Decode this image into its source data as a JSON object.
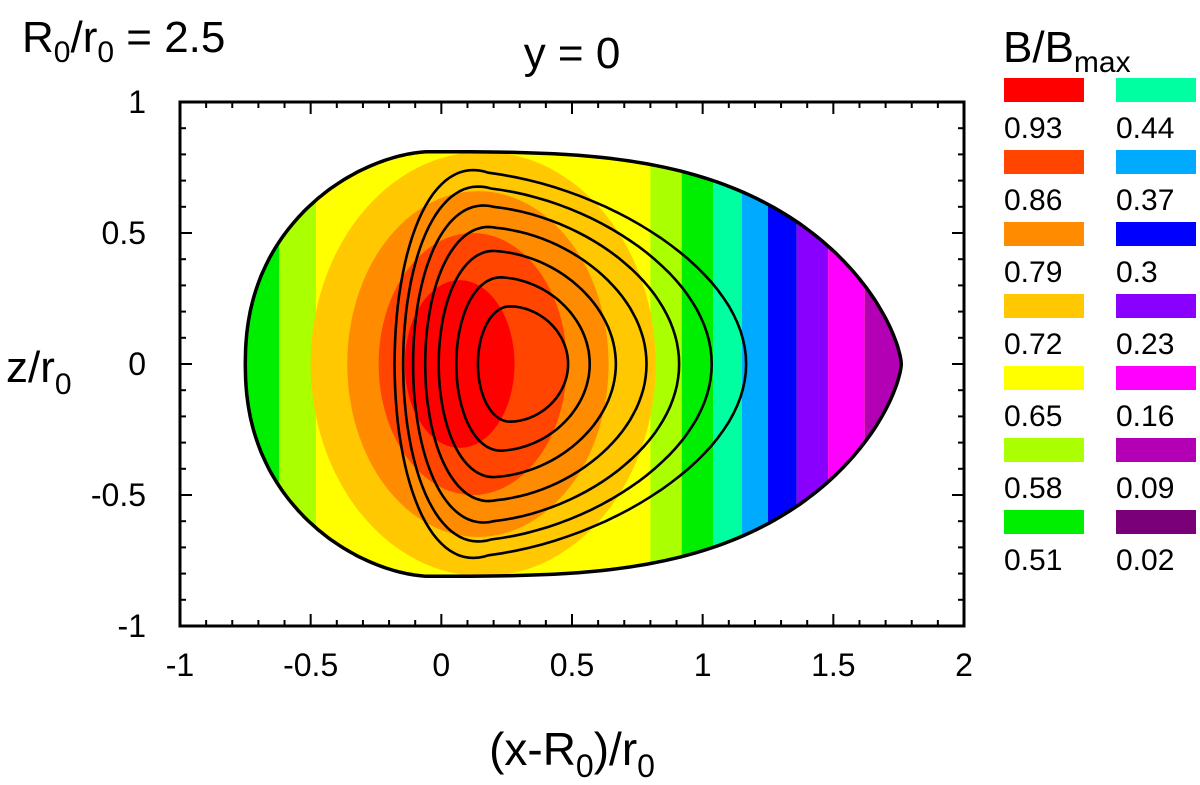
{
  "chart_data": {
    "type": "heatmap",
    "corner_label": {
      "main": "R",
      "sub": "0",
      "tail": "/r",
      "sub2": "0",
      "rest": " = 2.5"
    },
    "title": "y = 0",
    "xlabel": {
      "pre": "(x-R",
      "sub": "0",
      "mid": ")/r",
      "sub2": "0"
    },
    "ylabel": {
      "main": "z/r",
      "sub": "0"
    },
    "xlim": [
      -1,
      2
    ],
    "ylim": [
      -1,
      1
    ],
    "x_ticks": [
      {
        "value": -1,
        "label": "-1"
      },
      {
        "value": -0.5,
        "label": "-0.5"
      },
      {
        "value": 0,
        "label": "0"
      },
      {
        "value": 0.5,
        "label": "0.5"
      },
      {
        "value": 1,
        "label": "1"
      },
      {
        "value": 1.5,
        "label": "1.5"
      },
      {
        "value": 2,
        "label": "2"
      }
    ],
    "y_ticks": [
      {
        "value": -1,
        "label": "-1"
      },
      {
        "value": -0.5,
        "label": "-0.5"
      },
      {
        "value": 0,
        "label": "0"
      },
      {
        "value": 0.5,
        "label": "0.5"
      },
      {
        "value": 1,
        "label": "1"
      }
    ],
    "grid": false,
    "legend_position": "right",
    "colorbar_title": {
      "main": "B/B",
      "sub": "max"
    },
    "levels": [
      {
        "label": "0.93",
        "color": "#ff0000"
      },
      {
        "label": "0.86",
        "color": "#ff4500"
      },
      {
        "label": "0.79",
        "color": "#ff8c00"
      },
      {
        "label": "0.72",
        "color": "#ffc800"
      },
      {
        "label": "0.65",
        "color": "#ffff00"
      },
      {
        "label": "0.58",
        "color": "#aaff00"
      },
      {
        "label": "0.51",
        "color": "#00ee00"
      },
      {
        "label": "0.44",
        "color": "#00ffa0"
      },
      {
        "label": "0.37",
        "color": "#00aaff"
      },
      {
        "label": "0.3",
        "color": "#0000ff"
      },
      {
        "label": "0.23",
        "color": "#8a00ff"
      },
      {
        "label": "0.16",
        "color": "#ff00ff"
      },
      {
        "label": "0.09",
        "color": "#b400b4"
      },
      {
        "label": "0.02",
        "color": "#7a007a"
      }
    ],
    "boundary": {
      "x_min": -0.75,
      "x_max": 1.76,
      "z_max": 0.81,
      "z_max_at_x": -0.05
    },
    "color_bands_x": [
      {
        "x_from": -1.0,
        "x_to": -0.62,
        "color": "#00ee00"
      },
      {
        "x_from": -0.62,
        "x_to": -0.48,
        "color": "#aaff00"
      },
      {
        "x_from": 0.8,
        "x_to": 0.92,
        "color": "#aaff00"
      },
      {
        "x_from": 0.92,
        "x_to": 1.04,
        "color": "#00ee00"
      },
      {
        "x_from": 1.04,
        "x_to": 1.15,
        "color": "#00ffa0"
      },
      {
        "x_from": 1.15,
        "x_to": 1.25,
        "color": "#00aaff"
      },
      {
        "x_from": 1.25,
        "x_to": 1.36,
        "color": "#0000ff"
      },
      {
        "x_from": 1.36,
        "x_to": 1.48,
        "color": "#8a00ff"
      },
      {
        "x_from": 1.48,
        "x_to": 1.62,
        "color": "#ff00ff"
      },
      {
        "x_from": 1.62,
        "x_to": 2.0,
        "color": "#b400b4"
      }
    ],
    "color_core_ellipses": [
      {
        "cx": 0.16,
        "cz": 0,
        "rx": 0.66,
        "rz": 0.81,
        "color": "#ffc800"
      },
      {
        "cx": 0.14,
        "cz": 0,
        "rx": 0.5,
        "rz": 0.66,
        "color": "#ff8c00"
      },
      {
        "cx": 0.12,
        "cz": 0,
        "rx": 0.36,
        "rz": 0.5,
        "color": "#ff4500"
      },
      {
        "cx": 0.07,
        "cz": 0,
        "rx": 0.21,
        "rz": 0.32,
        "color": "#ff0000"
      }
    ],
    "flux_contours": [
      {
        "cx": 0.27,
        "rx": 0.34,
        "rz": 0.22,
        "skew": 0.05
      },
      {
        "cx": 0.24,
        "rx": 0.5,
        "rz": 0.33,
        "skew": 0.07
      },
      {
        "cx": 0.22,
        "rx": 0.66,
        "rz": 0.43,
        "skew": 0.09
      },
      {
        "cx": 0.21,
        "rx": 0.82,
        "rz": 0.52,
        "skew": 0.11
      },
      {
        "cx": 0.2,
        "rx": 0.98,
        "rz": 0.6,
        "skew": 0.13
      },
      {
        "cx": 0.19,
        "rx": 1.13,
        "rz": 0.67,
        "skew": 0.15
      },
      {
        "cx": 0.18,
        "rx": 1.28,
        "rz": 0.73,
        "skew": 0.17
      }
    ]
  }
}
